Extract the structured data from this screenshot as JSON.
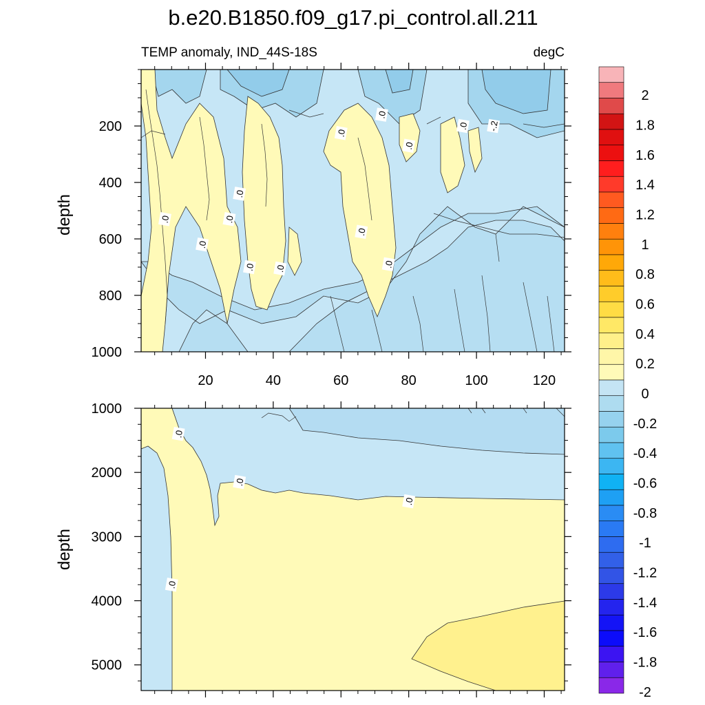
{
  "chart_data": {
    "type": "heatmap",
    "title": "b.e20.B1850.f09_g17.pi_control.all.211",
    "left_string": "TEMP anomaly, IND_44S-18S",
    "right_string": "degC",
    "x_ticks": [
      20,
      40,
      60,
      80,
      100,
      120
    ],
    "xlim": [
      1,
      126
    ],
    "panels": [
      {
        "name": "upper",
        "ylabel": "depth",
        "ylim": [
          1000,
          0
        ],
        "y_ticks": [
          200,
          400,
          600,
          800,
          1000
        ],
        "contour_labels": [
          {
            "text": ".0",
            "x": 8,
            "y": 530
          },
          {
            "text": ".0",
            "x": 19,
            "y": 620
          },
          {
            "text": ".0",
            "x": 27,
            "y": 530
          },
          {
            "text": ".0",
            "x": 30,
            "y": 440
          },
          {
            "text": ".0",
            "x": 33,
            "y": 700
          },
          {
            "text": ".0",
            "x": 42,
            "y": 705
          },
          {
            "text": ".0",
            "x": 60,
            "y": 225
          },
          {
            "text": ".0",
            "x": 72,
            "y": 160
          },
          {
            "text": ".0",
            "x": 66,
            "y": 575
          },
          {
            "text": ".0",
            "x": 80,
            "y": 270
          },
          {
            "text": ".0",
            "x": 74,
            "y": 690
          },
          {
            "text": ".0",
            "x": 96,
            "y": 200
          },
          {
            "text": "-.2",
            "x": 105,
            "y": 200
          }
        ]
      },
      {
        "name": "lower",
        "ylabel": "depth",
        "ylim": [
          5400,
          1000
        ],
        "y_ticks": [
          1000,
          2000,
          3000,
          4000,
          5000
        ],
        "contour_labels": [
          {
            "text": ".0",
            "x": 12,
            "y": 1400
          },
          {
            "text": ".0",
            "x": 30,
            "y": 2150
          },
          {
            "text": ".0",
            "x": 80,
            "y": 2450
          },
          {
            "text": ".0",
            "x": 10,
            "y": 3750
          }
        ]
      }
    ],
    "colorbar": {
      "labels": [
        "2",
        "1.8",
        "1.6",
        "1.4",
        "1.2",
        "1",
        "0.8",
        "0.6",
        "0.4",
        "0.2",
        "0",
        "-0.2",
        "-0.4",
        "-0.6",
        "-0.8",
        "-1",
        "-1.2",
        "-1.4",
        "-1.6",
        "-1.8",
        "-2"
      ],
      "colors": [
        "#f8b4b8",
        "#f07a7e",
        "#e04a4a",
        "#d21414",
        "#e01010",
        "#ec1010",
        "#ff1e1e",
        "#ff3a2a",
        "#ff5a20",
        "#ff6a14",
        "#ff800e",
        "#ff9408",
        "#ffa808",
        "#ffbc1a",
        "#ffcc2a",
        "#ffdc44",
        "#ffe866",
        "#fff08a",
        "#fff6a8",
        "#fffab8",
        "#c4e4f4",
        "#aedcf0",
        "#96d2ee",
        "#7ccaec",
        "#60c2f0",
        "#3cb6f2",
        "#10b2f4",
        "#1ea0f4",
        "#2a8cf4",
        "#2a7af4",
        "#2e6cf0",
        "#3260e8",
        "#3254e6",
        "#2c3ae8",
        "#2424ee",
        "#1414f6",
        "#0c0cfa",
        "#3c14f2",
        "#6020ec",
        "#8a28e8"
      ]
    }
  }
}
